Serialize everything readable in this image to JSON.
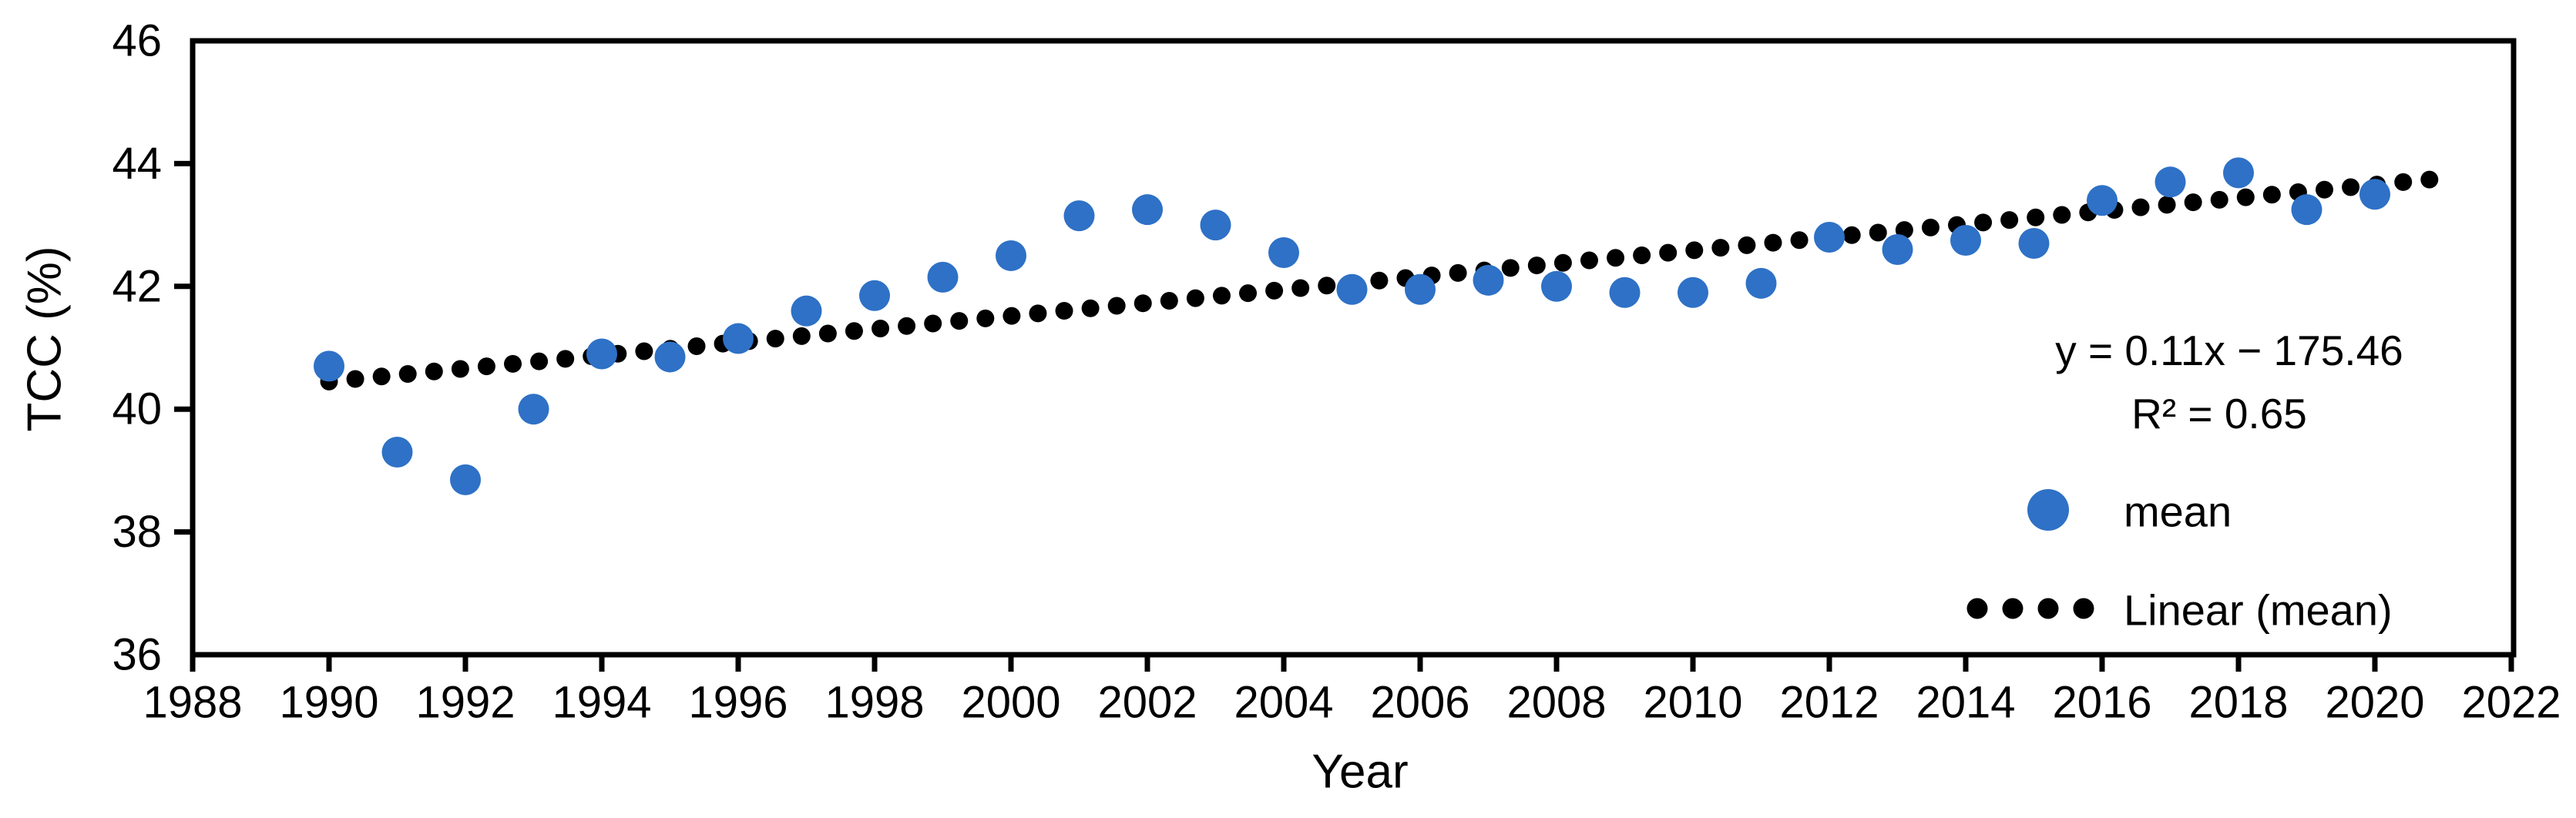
{
  "figure": {
    "background_color": "#ffffff",
    "axis_color": "#000000",
    "accent_blue": "#2E71C6"
  },
  "chart_data": {
    "type": "scatter",
    "title": "",
    "xlabel": "Year",
    "ylabel": "TCC (%)",
    "xlim": [
      1988,
      2022
    ],
    "ylim": [
      36,
      46
    ],
    "x_ticks": [
      1988,
      1990,
      1992,
      1994,
      1996,
      1998,
      2000,
      2002,
      2004,
      2006,
      2008,
      2010,
      2012,
      2014,
      2016,
      2018,
      2020,
      2022
    ],
    "y_ticks": [
      46,
      44,
      42,
      40,
      38,
      36
    ],
    "grid": false,
    "legend_position": "right-middle",
    "series": [
      {
        "name": "mean",
        "marker": "circle",
        "color": "#2E71C6",
        "x": [
          1990,
          1991,
          1992,
          1993,
          1994,
          1995,
          1996,
          1997,
          1998,
          1999,
          2000,
          2001,
          2002,
          2003,
          2004,
          2005,
          2006,
          2007,
          2008,
          2009,
          2010,
          2011,
          2012,
          2013,
          2014,
          2015,
          2016,
          2017,
          2018,
          2019,
          2020
        ],
        "y": [
          40.7,
          39.3,
          38.85,
          40.0,
          40.9,
          40.85,
          41.15,
          41.6,
          41.85,
          42.15,
          42.5,
          43.15,
          43.25,
          43.0,
          42.55,
          41.95,
          41.95,
          42.1,
          42.0,
          41.9,
          41.9,
          42.05,
          42.8,
          42.6,
          42.75,
          42.7,
          43.4,
          43.7,
          43.85,
          43.25,
          43.5
        ]
      }
    ],
    "trendline": {
      "name": "Linear (mean)",
      "style": "dotted",
      "color": "#000000",
      "start": {
        "x": 1990,
        "y": 40.45
      },
      "end": {
        "x": 2020.8,
        "y": 43.74
      },
      "equation": "y = 0.11x −  175.46",
      "r_squared": "R² = 0.65"
    }
  }
}
